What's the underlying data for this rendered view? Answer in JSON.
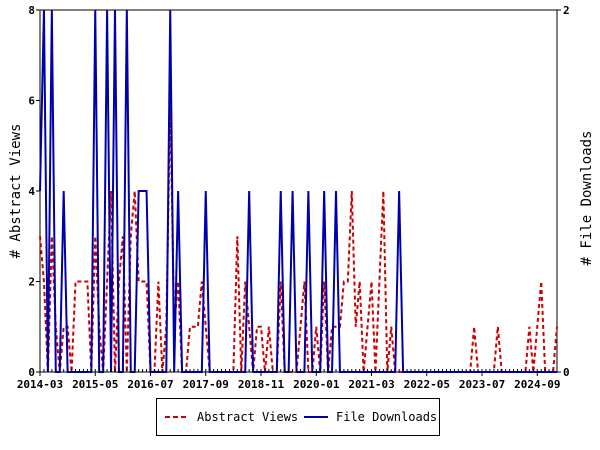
{
  "chart_data": {
    "type": "line",
    "ylabel": "# Abstract Views",
    "y2label": "# File Downloads",
    "ylim": [
      0,
      8
    ],
    "y2lim": [
      0,
      2
    ],
    "yticks": [
      0,
      2,
      4,
      6,
      8
    ],
    "y2ticks": [
      0,
      2
    ],
    "x_tick_labels": [
      "2014-03",
      "2015-05",
      "2016-07",
      "2017-09",
      "2018-11",
      "2020-01",
      "2021-03",
      "2022-05",
      "2023-07",
      "2024-09"
    ],
    "months": [
      "2014-03",
      "2014-04",
      "2014-05",
      "2014-06",
      "2014-07",
      "2014-08",
      "2014-09",
      "2014-10",
      "2014-11",
      "2014-12",
      "2015-01",
      "2015-02",
      "2015-03",
      "2015-04",
      "2015-05",
      "2015-06",
      "2015-07",
      "2015-08",
      "2015-09",
      "2015-10",
      "2015-11",
      "2015-12",
      "2016-01",
      "2016-02",
      "2016-03",
      "2016-04",
      "2016-05",
      "2016-06",
      "2016-07",
      "2016-08",
      "2016-09",
      "2016-10",
      "2016-11",
      "2016-12",
      "2017-01",
      "2017-02",
      "2017-03",
      "2017-04",
      "2017-05",
      "2017-06",
      "2017-07",
      "2017-08",
      "2017-09",
      "2017-10",
      "2017-11",
      "2017-12",
      "2018-01",
      "2018-02",
      "2018-03",
      "2018-04",
      "2018-05",
      "2018-06",
      "2018-07",
      "2018-08",
      "2018-09",
      "2018-10",
      "2018-11",
      "2018-12",
      "2019-01",
      "2019-02",
      "2019-03",
      "2019-04",
      "2019-05",
      "2019-06",
      "2019-07",
      "2019-08",
      "2019-09",
      "2019-10",
      "2019-11",
      "2019-12",
      "2020-01",
      "2020-02",
      "2020-03",
      "2020-04",
      "2020-05",
      "2020-06",
      "2020-07",
      "2020-08",
      "2020-09",
      "2020-10",
      "2020-11",
      "2020-12",
      "2021-01",
      "2021-02",
      "2021-03",
      "2021-04",
      "2021-05",
      "2021-06",
      "2021-07",
      "2021-08",
      "2021-09",
      "2021-10",
      "2021-11",
      "2021-12",
      "2022-01",
      "2022-02",
      "2022-03",
      "2022-04",
      "2022-05",
      "2022-06",
      "2022-07",
      "2022-08",
      "2022-09",
      "2022-10",
      "2022-11",
      "2022-12",
      "2023-01",
      "2023-02",
      "2023-03",
      "2023-04",
      "2023-05",
      "2023-06",
      "2023-07",
      "2023-08",
      "2023-09",
      "2023-10",
      "2023-11",
      "2023-12",
      "2024-01",
      "2024-02",
      "2024-03",
      "2024-04",
      "2024-05",
      "2024-06",
      "2024-07",
      "2024-08",
      "2024-09",
      "2024-10",
      "2024-11",
      "2024-12",
      "2025-01",
      "2025-02"
    ],
    "series": [
      {
        "name": "Abstract Views",
        "color": "#cc0000",
        "dash": "dashed",
        "axis": "left",
        "values": [
          3,
          2,
          0,
          3,
          1,
          0,
          1,
          1,
          0,
          2,
          2,
          2,
          2,
          0,
          3,
          1,
          0,
          2,
          4,
          0,
          2,
          3,
          0,
          3,
          4,
          2,
          2,
          2,
          0,
          0,
          2,
          0,
          1,
          6,
          1,
          2,
          0,
          0,
          1,
          1,
          1,
          2,
          1,
          0,
          0,
          0,
          0,
          0,
          0,
          0,
          3,
          0,
          2,
          1,
          0,
          1,
          1,
          0,
          1,
          0,
          0,
          2,
          0,
          0,
          0,
          0,
          1,
          2,
          0,
          0,
          1,
          0,
          2,
          0,
          1,
          1,
          1,
          2,
          2,
          4,
          1,
          2,
          0,
          1,
          2,
          0,
          2,
          4,
          0,
          1,
          0,
          0,
          0,
          0,
          0,
          0,
          0,
          0,
          0,
          0,
          0,
          0,
          0,
          0,
          0,
          0,
          0,
          0,
          0,
          0,
          1,
          0,
          0,
          0,
          0,
          0,
          1,
          0,
          0,
          0,
          0,
          0,
          0,
          0,
          1,
          0,
          1,
          2,
          0,
          0,
          0,
          1
        ]
      },
      {
        "name": "File Downloads",
        "color": "#0000aa",
        "dash": "solid",
        "axis": "right",
        "values": [
          1,
          2,
          0,
          2,
          0,
          0,
          1,
          0,
          0,
          0,
          0,
          0,
          0,
          0,
          2,
          0,
          0,
          2,
          0,
          2,
          0,
          0,
          2,
          0,
          0,
          1,
          1,
          1,
          0,
          0,
          0,
          0,
          0,
          2,
          0,
          1,
          0,
          0,
          0,
          0,
          0,
          0,
          1,
          0,
          0,
          0,
          0,
          0,
          0,
          0,
          0,
          0,
          0,
          1,
          0,
          0,
          0,
          0,
          0,
          0,
          0,
          1,
          0,
          0,
          1,
          0,
          0,
          0,
          1,
          0,
          0,
          0,
          1,
          0,
          0,
          1,
          0,
          0,
          0,
          0,
          0,
          0,
          0,
          0,
          0,
          0,
          0,
          0,
          0,
          0,
          0,
          1,
          0,
          0,
          0,
          0,
          0,
          0,
          0,
          0,
          0,
          0,
          0,
          0,
          0,
          0,
          0,
          0,
          0,
          0,
          0,
          0,
          0,
          0,
          0,
          0,
          0,
          0,
          0,
          0,
          0,
          0,
          0,
          0,
          0,
          0,
          0,
          0,
          0,
          0,
          0,
          0
        ]
      }
    ],
    "legend_position": "bottom",
    "grid": false
  },
  "legend": {
    "abstract_views_label": "Abstract Views",
    "file_downloads_label": "File Downloads"
  }
}
